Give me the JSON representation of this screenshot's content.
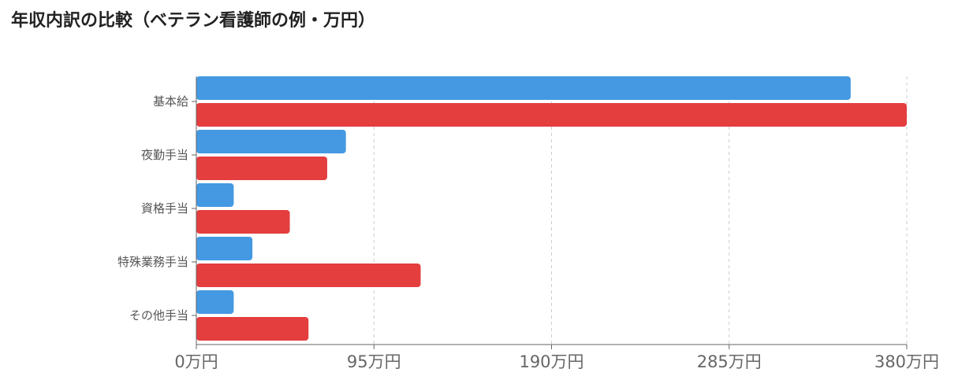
{
  "title": "年収内訳の比較（ベテラン看護師の例・万円）",
  "chart_data": {
    "type": "bar",
    "orientation": "horizontal",
    "title": "年収内訳の比較（ベテラン看護師の例・万円）",
    "xlabel": "",
    "ylabel": "",
    "categories": [
      "基本給",
      "夜勤手当",
      "資格手当",
      "特殊業務手当",
      "その他手当"
    ],
    "series": [
      {
        "values": [
          350,
          80,
          20,
          30,
          20
        ],
        "color": "#4499e2"
      },
      {
        "values": [
          380,
          70,
          50,
          120,
          60
        ],
        "color": "#e43e3f"
      }
    ],
    "xlim": [
      0,
      380
    ],
    "ticks": [
      0,
      95,
      190,
      285,
      380
    ],
    "tick_labels": [
      "0万円",
      "95万円",
      "190万円",
      "285万円",
      "380万円"
    ],
    "grid": true,
    "legend": "none"
  }
}
